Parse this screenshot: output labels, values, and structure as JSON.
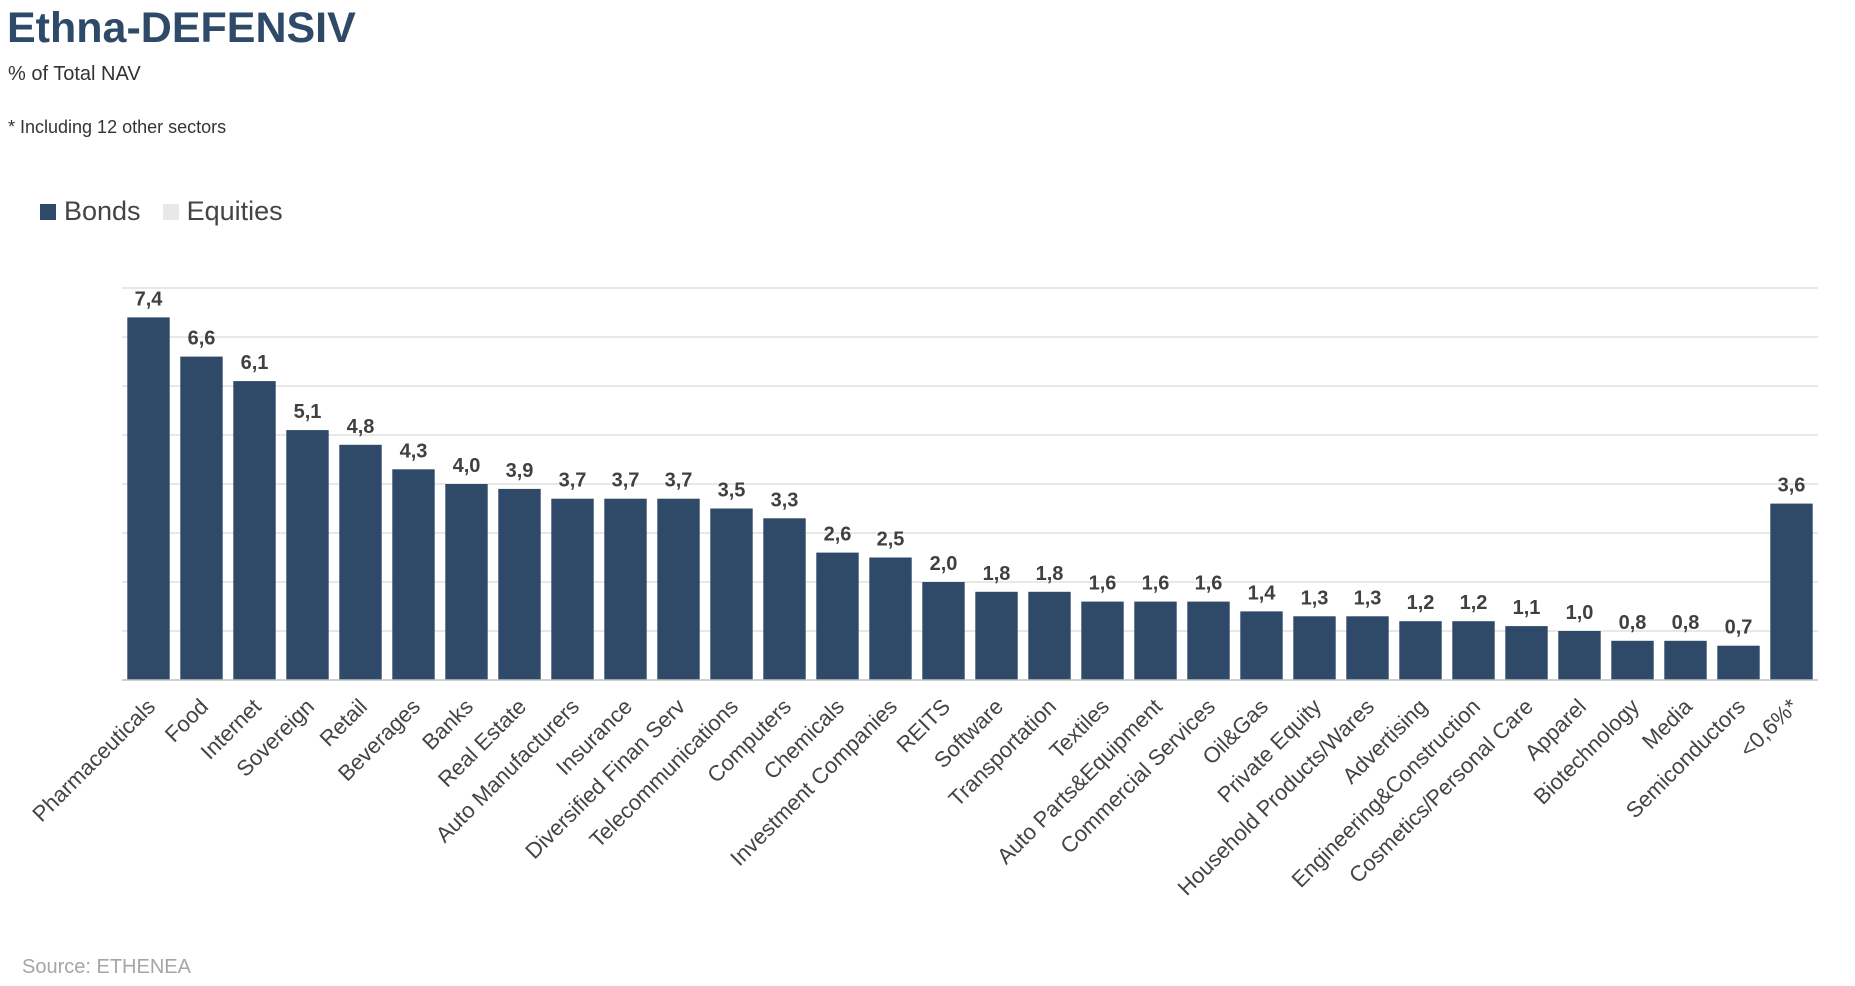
{
  "chart_data": {
    "type": "bar",
    "title": "Ethna-DEFENSIV",
    "subtitle": "% of Total NAV",
    "note": "* Including 12 other sectors",
    "source": "Source: ETHENEA",
    "legend_position": "top-left",
    "grid": true,
    "ylim": [
      0,
      8
    ],
    "categories": [
      "Pharmaceuticals",
      "Food",
      "Internet",
      "Sovereign",
      "Retail",
      "Beverages",
      "Banks",
      "Real Estate",
      "Auto Manufacturers",
      "Insurance",
      "Diversified Finan Serv",
      "Telecommunications",
      "Computers",
      "Chemicals",
      "Investment Companies",
      "REITS",
      "Software",
      "Transportation",
      "Textiles",
      "Auto Parts&Equipment",
      "Commercial Services",
      "Oil&Gas",
      "Private Equity",
      "Household Products/Wares",
      "Advertising",
      "Engineering&Construction",
      "Cosmetics/Personal Care",
      "Apparel",
      "Biotechnology",
      "Media",
      "Semiconductors",
      "<0,6%*"
    ],
    "series": [
      {
        "name": "Bonds",
        "color": "#2e4a68",
        "values": [
          7.4,
          6.6,
          6.1,
          5.1,
          4.8,
          4.3,
          4.0,
          3.9,
          3.7,
          3.7,
          3.7,
          3.5,
          3.3,
          2.6,
          2.5,
          2.0,
          1.8,
          1.8,
          1.6,
          1.6,
          1.6,
          1.4,
          1.3,
          1.3,
          1.2,
          1.2,
          1.1,
          1.0,
          0.8,
          0.8,
          0.7,
          3.6
        ]
      },
      {
        "name": "Equities",
        "color": "#e8e8e8",
        "values": [
          0,
          0,
          0,
          0,
          0,
          0,
          0,
          0,
          0,
          0,
          0,
          0,
          0,
          0,
          0,
          0,
          0,
          0,
          0,
          0,
          0,
          0,
          0,
          0,
          0,
          0,
          0,
          0,
          0,
          0,
          0,
          0
        ]
      }
    ],
    "data_labels": [
      "7,4",
      "6,6",
      "6,1",
      "5,1",
      "4,8",
      "4,3",
      "4,0",
      "3,9",
      "3,7",
      "3,7",
      "3,7",
      "3,5",
      "3,3",
      "2,6",
      "2,5",
      "2,0",
      "1,8",
      "1,8",
      "1,6",
      "1,6",
      "1,6",
      "1,4",
      "1,3",
      "1,3",
      "1,2",
      "1,2",
      "1,1",
      "1,0",
      "0,8",
      "0,8",
      "0,7",
      "3,6"
    ]
  }
}
